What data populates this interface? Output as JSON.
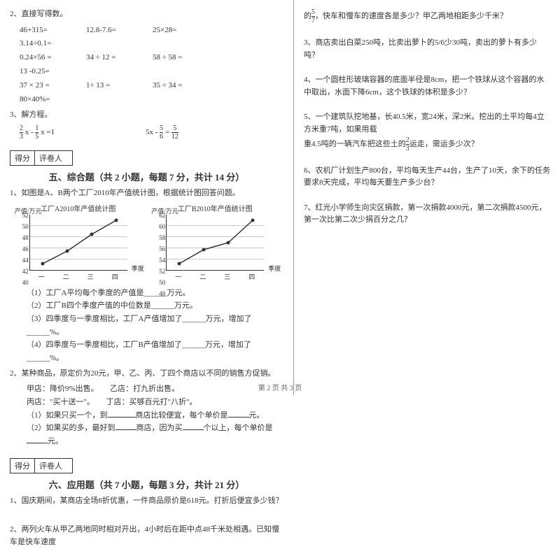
{
  "left": {
    "q2_title": "2、直接写得数。",
    "calc_rows": [
      [
        "46+315=",
        "12.8-7.6=",
        "25×28=",
        "3.14÷0.1="
      ],
      [
        "0.24×56 =",
        "34 ÷ 12 =",
        "58 ÷ 58 =",
        "13 -0.25="
      ],
      [
        "37 × 23 =",
        "1÷ 13 =",
        "35 ÷ 34 =",
        "80×40%="
      ]
    ],
    "q3_title": "3、解方程。",
    "eq1_pre": " x - ",
    "eq1_mid": " x =1",
    "eq1_f1n": "2",
    "eq1_f1d": "3",
    "eq1_f2n": "1",
    "eq1_f2d": "5",
    "eq2_pre": "5x - ",
    "eq2_eq": " = ",
    "eq2_f1n": "5",
    "eq2_f1d": "6",
    "eq2_f2n": "5",
    "eq2_f2d": "12",
    "score_a": "得分",
    "score_b": "评卷人",
    "sec5_title": "五、综合题（共 2 小题，每题 7 分，共计 14 分）",
    "sec5_q1": "1、如图是A、B两个工厂2010年产值统计图，根据统计图回答问题。",
    "chartA": {
      "title": "工厂A2010年产值统计图",
      "ylabel": "产值/万元",
      "xlabel": "季度",
      "y_vals": [
        "52",
        "50",
        "48",
        "46",
        "44",
        "42",
        "40"
      ],
      "x_vals": [
        "一",
        "二",
        "三",
        "四"
      ],
      "points": [
        [
          18,
          70
        ],
        [
          53,
          52
        ],
        [
          88,
          28
        ],
        [
          123,
          8
        ]
      ],
      "color": "#333"
    },
    "chartB": {
      "title": "工厂B2010年产值统计图",
      "ylabel": "产值/万元",
      "xlabel": "季度",
      "y_vals": [
        "62",
        "60",
        "58",
        "56",
        "54",
        "52",
        "50",
        "48"
      ],
      "x_vals": [
        "一",
        "二",
        "三",
        "四"
      ],
      "points": [
        [
          18,
          70
        ],
        [
          53,
          50
        ],
        [
          88,
          40
        ],
        [
          123,
          8
        ]
      ],
      "color": "#333"
    },
    "sub1": "（1）工厂A平均每个季度的产值是______万元。",
    "sub2": "（2）工厂B四个季度产值的中位数是______万元。",
    "sub3": "（3）四季度与一季度相比，工厂A产值增加了______万元，增加了______%。",
    "sub4": "（4）四季度与一季度相比，工厂B产值增加了______万元，增加了______%。",
    "sec5_q2": "2、某种商品，原定价为20元，甲、乙、丙、丁四个商店以不同的销售方促销。",
    "q2_a": "甲店：降价9%出售。　　乙店：打九折出售。",
    "q2_b": "丙店：\"买十送一\"。　　丁店：买够百元打\"八折\"。",
    "q2_s1_a": "（1）如果只买一个，到",
    "q2_s1_b": "商店比较便宜，每个单价是",
    "q2_s1_c": "元。",
    "q2_s2_a": "（2）如果买的多，最好到",
    "q2_s2_b": "商店，因为买",
    "q2_s2_c": "个以上，每个单价是",
    "q2_s2_d": "元。",
    "sec6_title": "六、应用题（共 7 小题，每题 3 分，共计 21 分）",
    "sec6_q1": "1、国庆期间，某商店全场8折优惠，一件商品原价是618元。打折后便宜多少钱？",
    "sec6_q2": "2、两列火车从甲乙两地同时相对开出，4小时后在距中点48千米处相遇。已知慢车是快车速度"
  },
  "right": {
    "q2_cont_a": "的",
    "q2_cont_b": "，快车和慢车的速度各是多少？甲乙两地相距多少千米？",
    "q2_fn": "5",
    "q2_fd": "7",
    "q3": "3、商店卖出白菜250吨，比卖出萝卜的5/6少30吨，卖出的萝卜有多少吨？",
    "q4": "4、一个圆柱形玻璃容器的底面半径是8cm，把一个铁球从这个容器的水中取出，水面下降6cm，这个铁球的体积是多少？",
    "q5_a": "5、一个建筑队挖地基，长40.5米，宽24米，深2米。挖出的土平均每4立方米重7吨，如果用载",
    "q5_b": "重4.5吨的一辆汽车把这些土的",
    "q5_c": "运走，需运多少次？",
    "q5_fn": "2",
    "q5_fd": "3",
    "q6": "6、农机厂计划生产800台，平均每天生产44台，生产了10天，余下的任务要求8天完成，平均每天要生产多少台？",
    "q7": "7、红光小学师生向灾区捐款，第一次捐款4000元，第二次捐款4500元，第一次比第二次少捐百分之几？"
  },
  "footer": "第 2 页 共 3 页"
}
